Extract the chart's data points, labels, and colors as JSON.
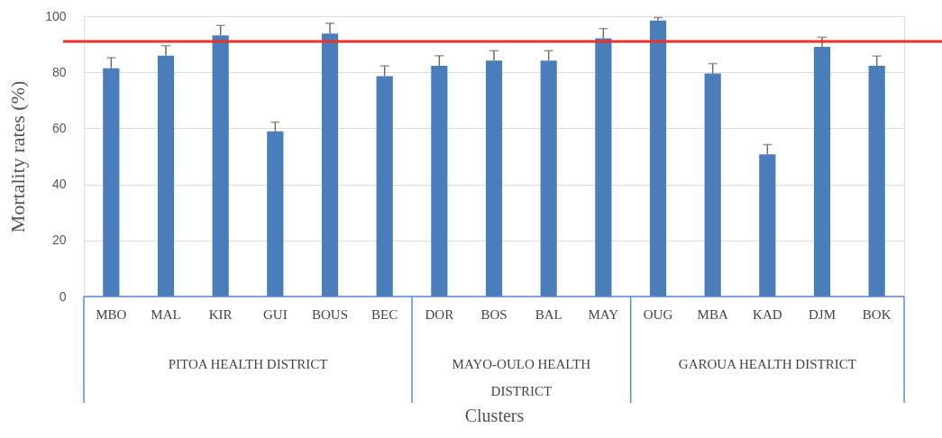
{
  "chart_data": {
    "type": "bar",
    "ylabel": "Mortality rates (%)",
    "xlabel": "Clusters",
    "categories": [
      "MBO",
      "MAL",
      "KIR",
      "GUI",
      "BOUS",
      "BEC",
      "DOR",
      "BOS",
      "BAL",
      "MAY",
      "OUG",
      "MBA",
      "KAD",
      "DJM",
      "BOK"
    ],
    "values": [
      81.4,
      85.9,
      93.2,
      58.9,
      93.8,
      78.6,
      82.3,
      84.2,
      84.2,
      92.1,
      98.5,
      79.6,
      50.7,
      89.1,
      82.3
    ],
    "errors": [
      [
        81.4,
        85.2
      ],
      [
        85.9,
        89.5
      ],
      [
        93.2,
        96.7
      ],
      [
        58.9,
        62.2
      ],
      [
        93.8,
        97.5
      ],
      [
        78.6,
        82.3
      ],
      [
        82.3,
        85.9
      ],
      [
        84.2,
        87.7
      ],
      [
        84.2,
        87.7
      ],
      [
        92.1,
        95.6
      ],
      [
        98.5,
        99.5
      ],
      [
        79.6,
        83.1
      ],
      [
        50.7,
        54.2
      ],
      [
        89.1,
        92.5
      ],
      [
        82.3,
        85.8
      ]
    ],
    "color": "#4a7ebb",
    "ylim": [
      0,
      100
    ],
    "yticks": [
      0,
      20,
      40,
      60,
      80,
      100
    ],
    "grid": "y",
    "ref_lines": [
      {
        "axis": "y",
        "value": 91,
        "color": "#e8322a"
      }
    ],
    "annotations": [
      "PITOA HEALTH DISTRICT",
      "MAYO-OULO HEALTH DISTRICT",
      "GAROUA HEALTH DISTRICT"
    ]
  }
}
